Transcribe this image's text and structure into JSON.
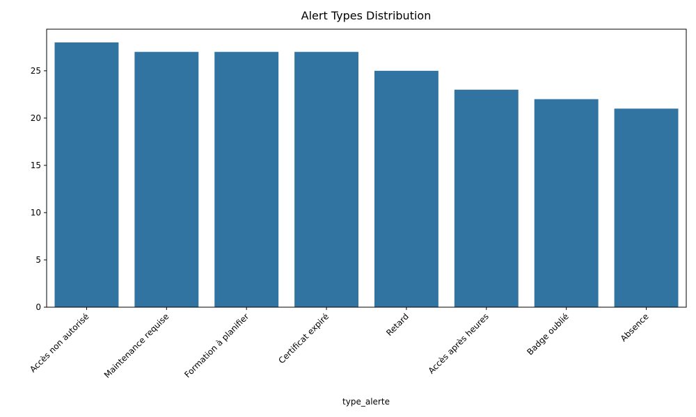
{
  "chart_data": {
    "type": "bar",
    "title": "Alert Types Distribution",
    "xlabel": "type_alerte",
    "ylabel": "",
    "categories": [
      "Accès non autorisé",
      "Maintenance requise",
      "Formation à planifier",
      "Certificat expiré",
      "Retard",
      "Accès après heures",
      "Badge oublié",
      "Absence"
    ],
    "values": [
      28,
      27,
      27,
      27,
      25,
      23,
      22,
      21
    ],
    "ylim": [
      0,
      29.4
    ],
    "yticks": [
      0,
      5,
      10,
      15,
      20,
      25
    ],
    "bar_color": "#3274a1",
    "grid": false,
    "legend": "none"
  }
}
